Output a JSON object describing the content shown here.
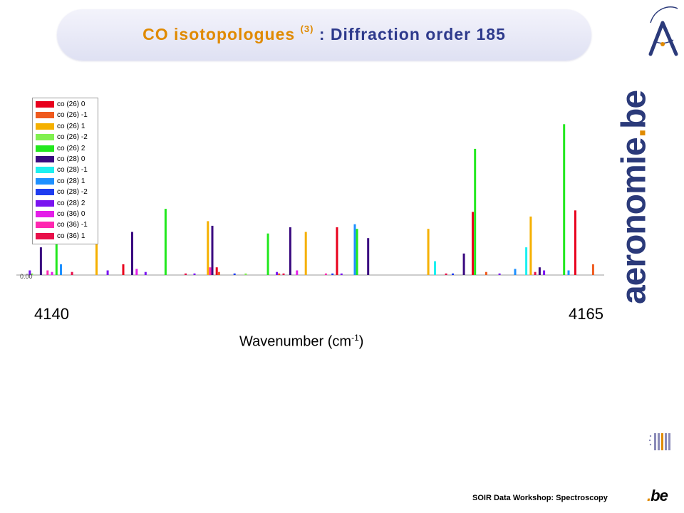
{
  "title": {
    "part1": "CO isotopologues",
    "sup": "(3)",
    "part2": ": Diffraction order 185"
  },
  "brand": {
    "text": "aeronomie",
    "dot": ".",
    "tld": "be"
  },
  "footer": {
    "text": "SOIR Data Workshop: Spectroscopy"
  },
  "be_logo": {
    "dot": ".",
    "text": "be"
  },
  "colors": {
    "title_orange": "#e08a00",
    "title_navy": "#2e3a8c",
    "brand_navy": "#2b3a7a"
  },
  "chart_data": {
    "type": "bar",
    "xlabel_main": "Wavenumber  (cm",
    "xlabel_sup": "-1",
    "xlabel_end": ")",
    "x_ticks": [
      "4140",
      "4165"
    ],
    "xlim": [
      4139.2,
      4165.6
    ],
    "y_zero_label": "0.00",
    "legend_position": "top-left",
    "series": [
      {
        "name": "co (26) 0",
        "color": "#e8001c",
        "points": [
          [
            4144.0,
            0.07
          ],
          [
            4148.2,
            0.05
          ],
          [
            4153.6,
            0.31
          ],
          [
            4159.7,
            0.41
          ],
          [
            4164.3,
            0.42
          ]
        ]
      },
      {
        "name": "co (26) -1",
        "color": "#ef5a1e",
        "points": [
          [
            4148.3,
            0.02
          ],
          [
            4151.0,
            0.01
          ],
          [
            4160.3,
            0.02
          ],
          [
            4165.1,
            0.07
          ]
        ]
      },
      {
        "name": "co (26) 1",
        "color": "#f5b000",
        "points": [
          [
            4142.8,
            0.42
          ],
          [
            4147.8,
            0.35
          ],
          [
            4152.2,
            0.28
          ],
          [
            4157.7,
            0.3
          ],
          [
            4162.3,
            0.38
          ]
        ]
      },
      {
        "name": "co (26) -2",
        "color": "#80f050",
        "points": [
          [
            4139.9,
            0.01
          ],
          [
            4149.5,
            0.01
          ]
        ]
      },
      {
        "name": "co (26) 2",
        "color": "#22e81e",
        "points": [
          [
            4141.0,
            0.2
          ],
          [
            4145.9,
            0.43
          ],
          [
            4150.5,
            0.27
          ],
          [
            4154.5,
            0.3
          ],
          [
            4159.8,
            0.82
          ],
          [
            4163.8,
            0.98
          ]
        ]
      },
      {
        "name": "co (28) 0",
        "color": "#3a0a80",
        "points": [
          [
            4140.3,
            0.18
          ],
          [
            4144.4,
            0.28
          ],
          [
            4148.0,
            0.32
          ],
          [
            4151.5,
            0.31
          ],
          [
            4155.0,
            0.24
          ],
          [
            4159.3,
            0.14
          ],
          [
            4162.7,
            0.05
          ]
        ]
      },
      {
        "name": "co (28) -1",
        "color": "#1ef0f0",
        "points": [
          [
            4158.0,
            0.09
          ],
          [
            4162.1,
            0.18
          ]
        ]
      },
      {
        "name": "co (28) 1",
        "color": "#1e90ff",
        "points": [
          [
            4141.2,
            0.07
          ],
          [
            4154.4,
            0.33
          ],
          [
            4161.6,
            0.04
          ],
          [
            4164.0,
            0.03
          ]
        ]
      },
      {
        "name": "co (28) -2",
        "color": "#1e3cf0",
        "points": [
          [
            4149.0,
            0.01
          ],
          [
            4153.4,
            0.01
          ],
          [
            4158.8,
            0.01
          ]
        ]
      },
      {
        "name": "co (28) 2",
        "color": "#7a14f0",
        "points": [
          [
            4139.8,
            0.03
          ],
          [
            4143.3,
            0.03
          ],
          [
            4145.0,
            0.02
          ],
          [
            4147.2,
            0.01
          ],
          [
            4150.9,
            0.02
          ],
          [
            4153.8,
            0.01
          ],
          [
            4160.9,
            0.01
          ],
          [
            4162.9,
            0.03
          ]
        ]
      },
      {
        "name": "co (36) 0",
        "color": "#e41ee8",
        "points": [
          [
            4140.8,
            0.02
          ],
          [
            4144.6,
            0.04
          ],
          [
            4151.8,
            0.03
          ]
        ]
      },
      {
        "name": "co (36) -1",
        "color": "#ff28b0",
        "points": [
          [
            4140.6,
            0.03
          ],
          [
            4147.9,
            0.05
          ],
          [
            4153.1,
            0.01
          ]
        ]
      },
      {
        "name": "co (36) 1",
        "color": "#e8104a",
        "points": [
          [
            4141.7,
            0.02
          ],
          [
            4146.8,
            0.01
          ],
          [
            4151.2,
            0.01
          ],
          [
            4158.5,
            0.01
          ],
          [
            4162.5,
            0.02
          ]
        ]
      }
    ]
  }
}
